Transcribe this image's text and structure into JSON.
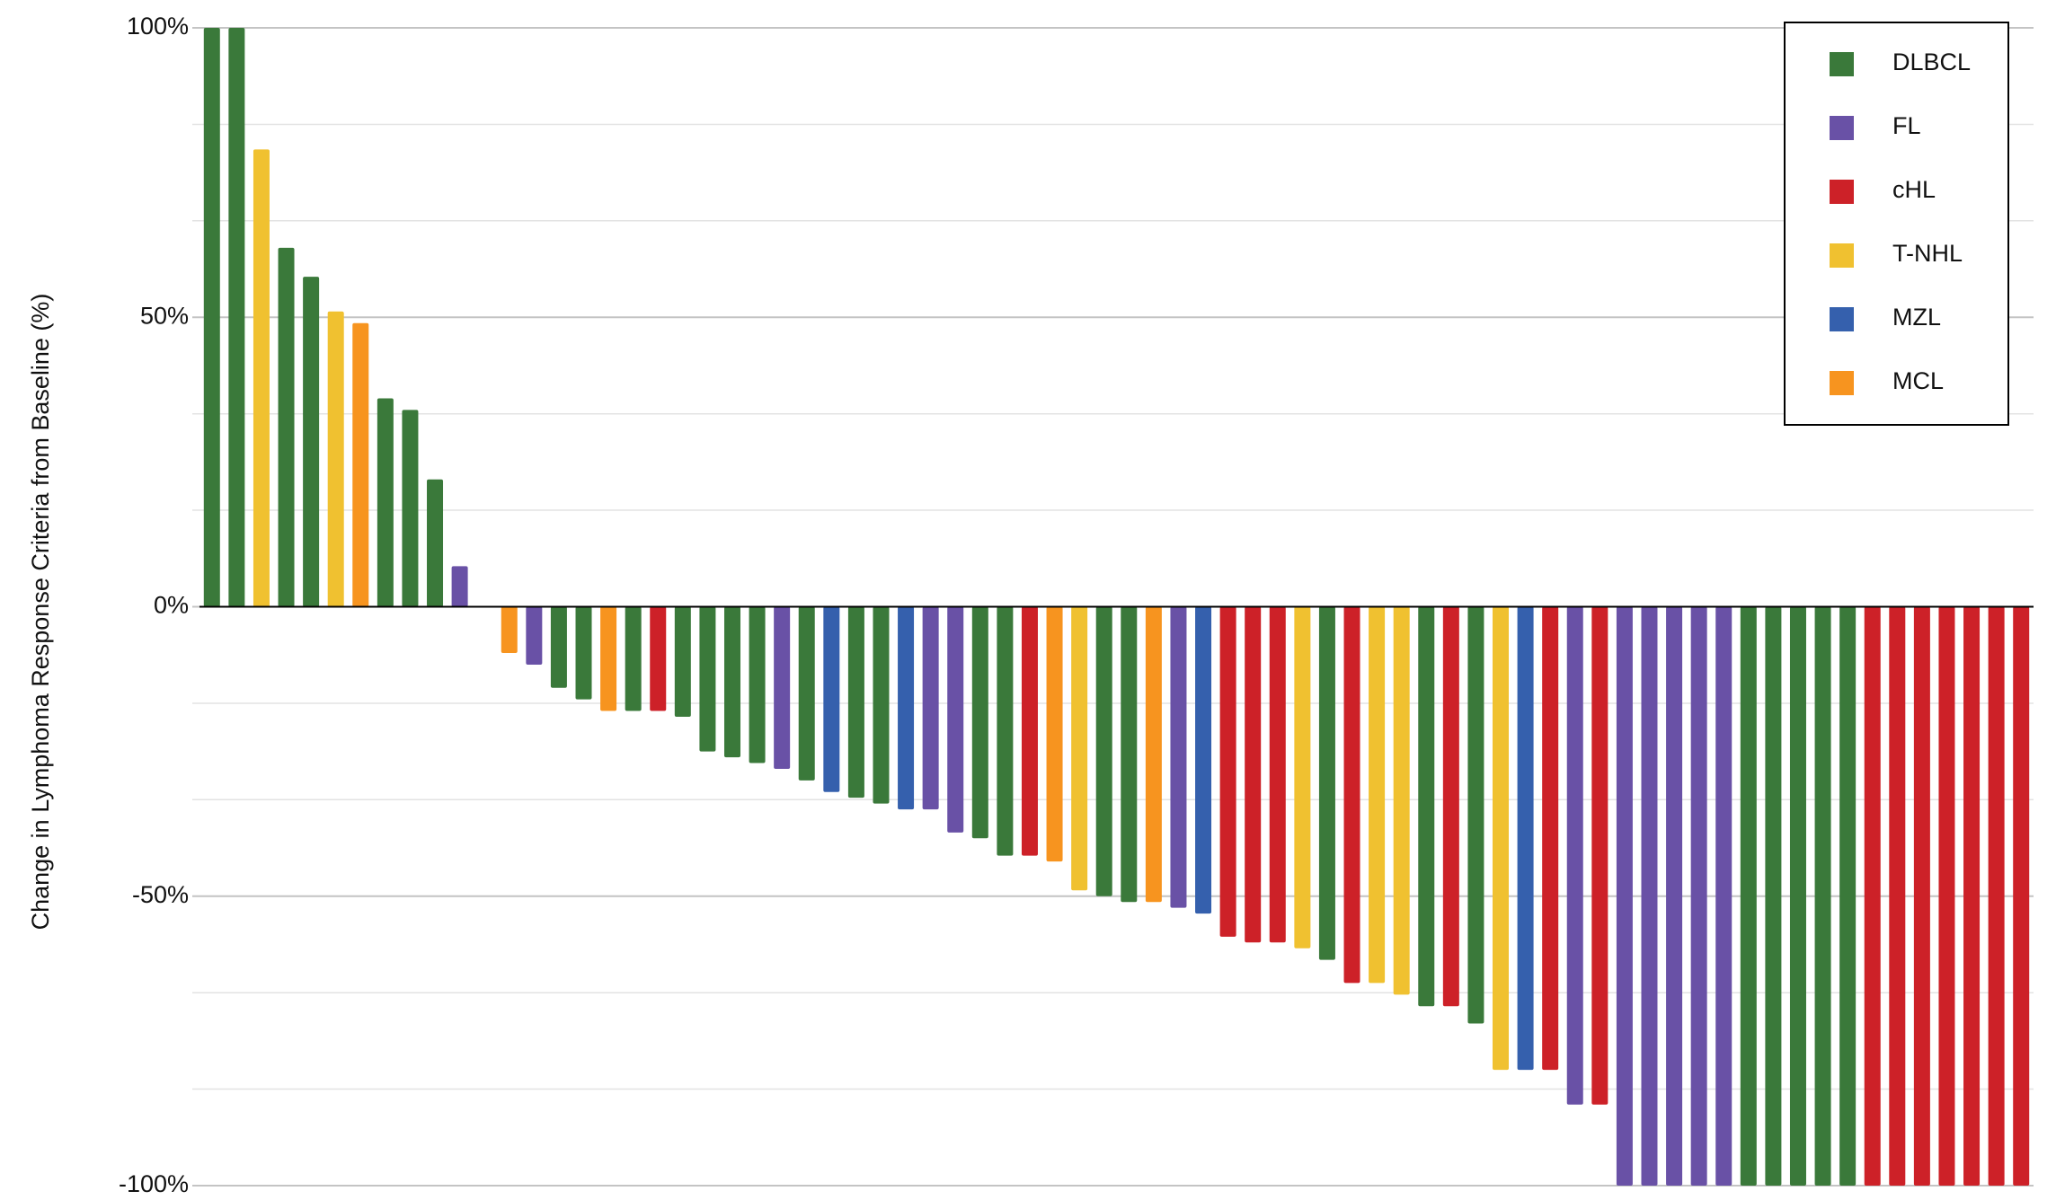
{
  "chart_data": {
    "type": "bar",
    "y_label": "Change in Lymphoma Response Criteria from Baseline (%)",
    "ylim": [
      -100,
      100
    ],
    "yticks": [
      {
        "value": -100,
        "label": "-100%"
      },
      {
        "value": -50,
        "label": "-50%"
      },
      {
        "value": 0,
        "label": "0%"
      },
      {
        "value": 50,
        "label": "50%"
      },
      {
        "value": 100,
        "label": "100%"
      }
    ],
    "minor_yticks": [
      -83.33,
      -66.67,
      -33.33,
      -16.67,
      16.67,
      33.33,
      66.67,
      83.33
    ],
    "grid": true,
    "legend": "upper right",
    "series": [
      {
        "name": "DLBCL",
        "color": "#3a793a",
        "values": [
          100,
          100,
          null,
          62,
          57,
          null,
          null,
          36,
          34,
          22,
          null,
          null,
          null,
          null,
          -14,
          -16,
          null,
          -18,
          null,
          -19,
          -25,
          -26,
          -27,
          null,
          -30,
          null,
          -33,
          -34,
          null,
          null,
          null,
          -40,
          -43,
          null,
          null,
          null,
          -50,
          -51,
          null,
          null,
          null,
          null,
          null,
          null,
          null,
          -61,
          null,
          null,
          null,
          -69,
          null,
          -72,
          null,
          null,
          null,
          null,
          null,
          null,
          null,
          null,
          null,
          null,
          -100,
          -100,
          -100,
          -100,
          -100,
          null,
          null,
          null,
          null,
          null,
          null,
          null
        ]
      },
      {
        "name": "FL",
        "color": "#6951a6",
        "values": [
          null,
          null,
          null,
          null,
          null,
          null,
          null,
          null,
          null,
          null,
          7,
          null,
          null,
          -10,
          null,
          null,
          null,
          null,
          null,
          null,
          null,
          null,
          null,
          -28,
          null,
          null,
          null,
          null,
          null,
          -35,
          -39,
          null,
          null,
          null,
          null,
          null,
          null,
          null,
          null,
          -52,
          null,
          null,
          null,
          null,
          null,
          null,
          null,
          null,
          null,
          null,
          null,
          null,
          null,
          null,
          null,
          -86,
          null,
          -100,
          -100,
          -100,
          -100,
          -100,
          null,
          null,
          null,
          null,
          null,
          null,
          null,
          null,
          null,
          null,
          null,
          null
        ]
      },
      {
        "name": "cHL",
        "color": "#cd2128",
        "values": [
          null,
          null,
          null,
          null,
          null,
          null,
          null,
          null,
          null,
          null,
          null,
          null,
          null,
          null,
          null,
          null,
          null,
          null,
          -18,
          null,
          null,
          null,
          null,
          null,
          null,
          null,
          null,
          null,
          null,
          null,
          null,
          null,
          null,
          -43,
          null,
          null,
          null,
          null,
          null,
          null,
          null,
          -57,
          -58,
          -58,
          null,
          null,
          -65,
          null,
          null,
          null,
          -69,
          null,
          null,
          null,
          -80,
          null,
          -86,
          null,
          null,
          null,
          null,
          null,
          null,
          null,
          null,
          null,
          null,
          -100,
          -100,
          -100,
          -100,
          -100,
          -100,
          -100
        ]
      },
      {
        "name": "T-NHL",
        "color": "#f0c130",
        "values": [
          null,
          null,
          79,
          null,
          null,
          51,
          null,
          null,
          null,
          null,
          null,
          null,
          null,
          null,
          null,
          null,
          null,
          null,
          null,
          null,
          null,
          null,
          null,
          null,
          null,
          null,
          null,
          null,
          null,
          null,
          null,
          null,
          null,
          null,
          null,
          -49,
          null,
          null,
          null,
          null,
          null,
          null,
          null,
          null,
          -59,
          null,
          null,
          -65,
          -67,
          null,
          null,
          null,
          -80,
          null,
          null,
          null,
          null,
          null,
          null,
          null,
          null,
          null,
          null,
          null,
          null,
          null,
          null,
          null,
          null,
          null,
          null,
          null,
          null,
          null
        ]
      },
      {
        "name": "MZL",
        "color": "#3560ad",
        "values": [
          null,
          null,
          null,
          null,
          null,
          null,
          null,
          null,
          null,
          null,
          null,
          null,
          null,
          null,
          null,
          null,
          null,
          null,
          null,
          null,
          null,
          null,
          null,
          null,
          null,
          -32,
          null,
          null,
          -35,
          null,
          null,
          null,
          null,
          null,
          null,
          null,
          null,
          null,
          null,
          null,
          -53,
          null,
          null,
          null,
          null,
          null,
          null,
          null,
          null,
          null,
          null,
          null,
          null,
          -80,
          null,
          null,
          null,
          null,
          null,
          null,
          null,
          null,
          null,
          null,
          null,
          null,
          null,
          null,
          null,
          null,
          null,
          null,
          null,
          null
        ]
      },
      {
        "name": "MCL",
        "color": "#f7941f",
        "values": [
          null,
          null,
          null,
          null,
          null,
          null,
          49,
          null,
          null,
          null,
          null,
          null,
          -8,
          null,
          null,
          null,
          -18,
          null,
          null,
          null,
          null,
          null,
          null,
          null,
          null,
          null,
          null,
          null,
          null,
          null,
          null,
          null,
          null,
          null,
          -44,
          null,
          null,
          null,
          -51,
          null,
          null,
          null,
          null,
          null,
          null,
          null,
          null,
          null,
          null,
          null,
          null,
          null,
          null,
          null,
          null,
          null,
          null,
          null,
          null,
          null,
          null,
          null,
          null,
          null,
          null,
          null,
          null,
          null,
          null,
          null,
          null,
          null,
          null,
          null
        ]
      }
    ]
  }
}
